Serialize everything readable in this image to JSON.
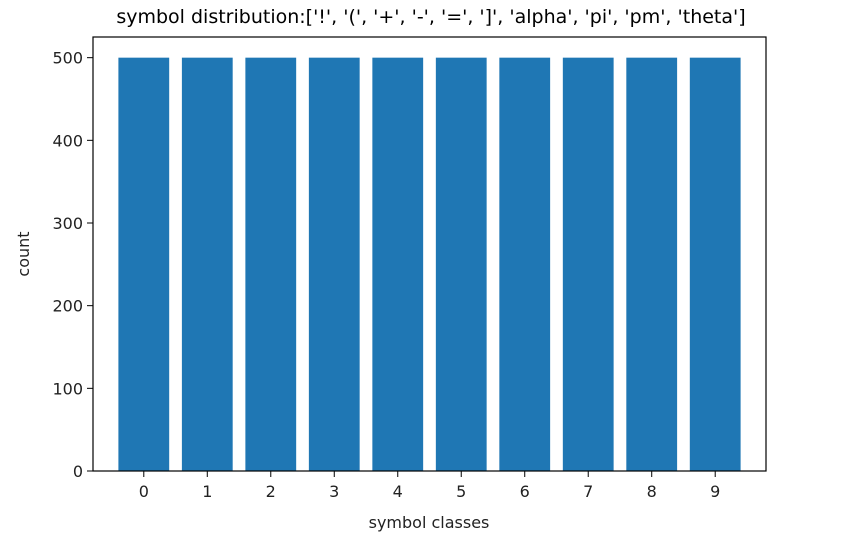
{
  "chart_data": {
    "type": "bar",
    "title": "symbol distribution:['!', '(', '+', '-', '=', ']', 'alpha', 'pi', 'pm', 'theta']",
    "xlabel": "symbol classes",
    "ylabel": "count",
    "categories": [
      "0",
      "1",
      "2",
      "3",
      "4",
      "5",
      "6",
      "7",
      "8",
      "9"
    ],
    "values": [
      500,
      500,
      500,
      500,
      500,
      500,
      500,
      500,
      500,
      500
    ],
    "yticks": [
      0,
      100,
      200,
      300,
      400,
      500
    ],
    "ylim": [
      0,
      525
    ],
    "grid": false,
    "bar_color": "#1f77b4"
  }
}
